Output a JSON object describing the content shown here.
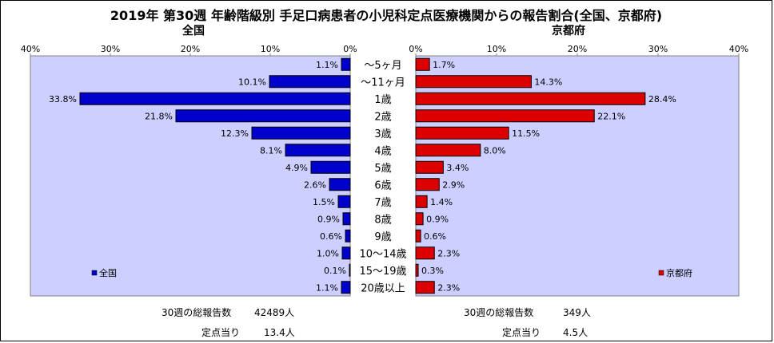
{
  "title": "2019年 第30週 年齢階級別 手足口病患者の小児科定点医療機関からの報告割合(全国、京都府)",
  "chart_data": {
    "type": "bar",
    "categories": [
      "～5ヶ月",
      "～11ヶ月",
      "1歳",
      "2歳",
      "3歳",
      "4歳",
      "5歳",
      "6歳",
      "7歳",
      "8歳",
      "9歳",
      "10～14歳",
      "15～19歳",
      "20歳以上"
    ],
    "series": [
      {
        "name": "全国",
        "panel_title": "全国",
        "color": "#0000cc",
        "values": [
          1.1,
          10.1,
          33.8,
          21.8,
          12.3,
          8.1,
          4.9,
          2.6,
          1.5,
          0.9,
          0.6,
          1.0,
          0.1,
          1.1
        ],
        "labels": [
          "1.1%",
          "10.1%",
          "33.8%",
          "21.8%",
          "12.3%",
          "8.1%",
          "4.9%",
          "2.6%",
          "1.5%",
          "0.9%",
          "0.6%",
          "1.0%",
          "0.1%",
          "1.1%"
        ]
      },
      {
        "name": "京都府",
        "panel_title": "京都府",
        "color": "#dd0000",
        "values": [
          1.7,
          14.3,
          28.4,
          22.1,
          11.5,
          8.0,
          3.4,
          2.9,
          1.4,
          0.9,
          0.6,
          2.3,
          0.3,
          2.3
        ],
        "labels": [
          "1.7%",
          "14.3%",
          "28.4%",
          "22.1%",
          "11.5%",
          "8.0%",
          "3.4%",
          "2.9%",
          "1.4%",
          "0.9%",
          "0.6%",
          "2.3%",
          "0.3%",
          "2.3%"
        ]
      }
    ],
    "xlim": [
      0,
      40
    ],
    "ticks": [
      "0%",
      "10%",
      "20%",
      "30%",
      "40%"
    ],
    "tick_values": [
      0,
      10,
      20,
      30,
      40
    ],
    "plot_bg": "#cccfff",
    "legend_position": "bottom-left / bottom-right"
  },
  "stats": {
    "national": {
      "total_label": "30週の総報告数",
      "total_value": "42489人",
      "per_label": "定点当り",
      "per_value": "13.4人"
    },
    "kyoto": {
      "total_label": "30週の総報告数",
      "total_value": "349人",
      "per_label": "定点当り",
      "per_value": "4.5人"
    }
  }
}
